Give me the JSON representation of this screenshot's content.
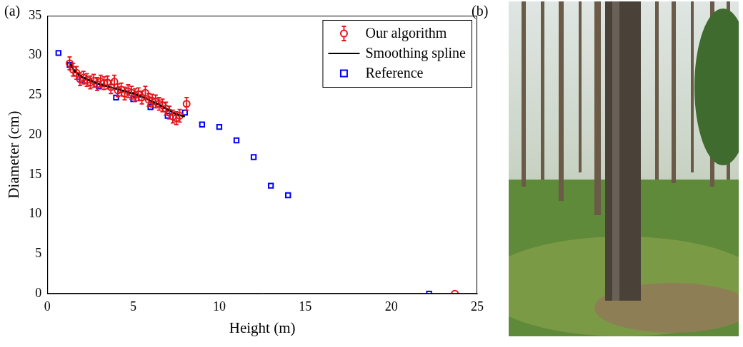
{
  "chart_data": {
    "type": "scatter",
    "panel_label": "(a)",
    "x_label": "Height (m)",
    "y_label": "Diameter (cm)",
    "xlim": [
      0,
      25
    ],
    "xticks": [
      0,
      5,
      10,
      15,
      20,
      25
    ],
    "ylim": [
      0,
      35
    ],
    "yticks": [
      0,
      5,
      10,
      15,
      20,
      25,
      30,
      35
    ],
    "grid": false,
    "legend": "upper right",
    "series": [
      {
        "name": "Our algorithm",
        "type": "scatter",
        "color": "#e3141b",
        "marker": "circle",
        "x": [
          1.3,
          1.5,
          1.7,
          1.9,
          2.1,
          2.3,
          2.5,
          2.7,
          2.9,
          3.1,
          3.3,
          3.5,
          3.7,
          3.9,
          4.1,
          4.3,
          4.5,
          4.7,
          4.9,
          5.1,
          5.3,
          5.5,
          5.7,
          5.9,
          6.1,
          6.3,
          6.5,
          6.7,
          6.9,
          7.1,
          7.3,
          7.5,
          7.7,
          8.1,
          23.7
        ],
        "values": [
          29.0,
          28.2,
          27.8,
          27.0,
          27.2,
          26.9,
          26.6,
          26.8,
          26.4,
          26.7,
          26.5,
          26.6,
          26.0,
          26.7,
          25.6,
          25.7,
          25.2,
          25.5,
          25.3,
          25.0,
          25.1,
          24.7,
          25.3,
          24.4,
          24.3,
          24.2,
          23.9,
          23.7,
          23.3,
          22.8,
          22.3,
          22.1,
          22.4,
          23.9,
          0
        ],
        "errors": [
          0.8,
          0.8,
          0.8,
          0.8,
          0.8,
          0.8,
          0.8,
          0.8,
          0.8,
          0.8,
          0.8,
          0.8,
          0.8,
          0.8,
          0.8,
          0.8,
          0.8,
          0.8,
          0.8,
          0.8,
          0.8,
          0.8,
          0.8,
          0.8,
          0.8,
          0.8,
          0.8,
          0.8,
          0.8,
          0.8,
          0.8,
          0.8,
          0.8,
          0.8,
          0
        ]
      },
      {
        "name": "Smoothing spline",
        "type": "line",
        "color": "#000000",
        "marker": "none",
        "line_style": "solid",
        "x": [
          1.3,
          1.6,
          2.0,
          2.5,
          3.0,
          3.5,
          4.0,
          4.5,
          5.0,
          5.5,
          6.0,
          6.5,
          7.0,
          7.5,
          8.0
        ],
        "values": [
          29.0,
          28.0,
          27.3,
          26.8,
          26.4,
          26.1,
          25.8,
          25.5,
          25.2,
          24.8,
          24.3,
          23.8,
          23.2,
          22.6,
          22.3
        ]
      },
      {
        "name": "Reference",
        "type": "scatter",
        "color": "#0000ff",
        "marker": "square",
        "x": [
          0.65,
          1.3,
          2,
          3,
          4,
          5,
          6,
          7,
          8,
          9,
          10,
          11,
          12,
          13,
          14,
          22.2
        ],
        "values": [
          30.3,
          28.8,
          26.9,
          26.1,
          24.7,
          24.5,
          23.5,
          22.4,
          22.8,
          21.3,
          21.0,
          19.3,
          17.2,
          13.6,
          12.4,
          0
        ]
      }
    ]
  },
  "photo": {
    "panel_label": "(b)"
  }
}
